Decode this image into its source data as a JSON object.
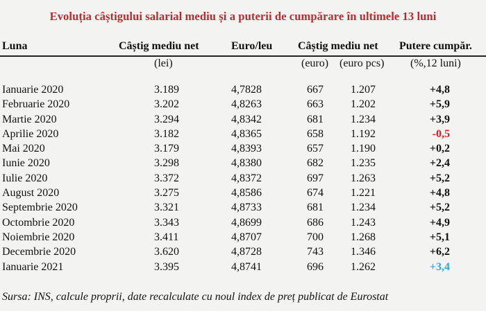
{
  "title": "Evoluția câștigului salarial mediu și a puterii de cumpărare în ultimele 13 luni",
  "headers": {
    "luna": "Luna",
    "castig_net": "Câștig mediu net",
    "castig_net_unit": "(lei)",
    "euro_leu": "Euro/leu",
    "castig_euro": "Câștig mediu net",
    "castig_euro_unit": "(euro)",
    "castig_euro_pcs_unit": "(euro pcs)",
    "putere": "Putere cumpăr.",
    "putere_unit": "(%,12 luni)"
  },
  "rows": [
    {
      "luna": "Ianuarie 2020",
      "castig": "3.189",
      "euro_leu": "4,7828",
      "euro": "667",
      "euro_pcs": "1.207",
      "putere": "+4,8",
      "color": "#111111"
    },
    {
      "luna": "Februarie 2020",
      "castig": "3.202",
      "euro_leu": "4,8263",
      "euro": "663",
      "euro_pcs": "1.202",
      "putere": "+5,9",
      "color": "#111111"
    },
    {
      "luna": "Martie 2020",
      "castig": "3.294",
      "euro_leu": "4,8342",
      "euro": "681",
      "euro_pcs": "1.234",
      "putere": "+3,9",
      "color": "#111111"
    },
    {
      "luna": "Aprilie 2020",
      "castig": "3.182",
      "euro_leu": "4,8365",
      "euro": "658",
      "euro_pcs": "1.192",
      "putere": "-0,5",
      "color": "#e02020"
    },
    {
      "luna": "Mai 2020",
      "castig": "3.179",
      "euro_leu": "4,8393",
      "euro": "657",
      "euro_pcs": "1.190",
      "putere": "+0,2",
      "color": "#111111"
    },
    {
      "luna": "Iunie 2020",
      "castig": "3.298",
      "euro_leu": "4,8380",
      "euro": "682",
      "euro_pcs": "1.235",
      "putere": "+2,4",
      "color": "#111111"
    },
    {
      "luna": "Iulie 2020",
      "castig": "3.372",
      "euro_leu": "4,8372",
      "euro": "697",
      "euro_pcs": "1.263",
      "putere": "+5,2",
      "color": "#111111"
    },
    {
      "luna": "August 2020",
      "castig": "3.275",
      "euro_leu": "4,8586",
      "euro": "674",
      "euro_pcs": "1.221",
      "putere": "+4,8",
      "color": "#111111"
    },
    {
      "luna": "Septembrie 2020",
      "castig": "3.321",
      "euro_leu": "4,8733",
      "euro": "681",
      "euro_pcs": "1.234",
      "putere": "+5,2",
      "color": "#111111"
    },
    {
      "luna": "Octombrie 2020",
      "castig": "3.343",
      "euro_leu": "4,8699",
      "euro": "686",
      "euro_pcs": "1.243",
      "putere": "+4,9",
      "color": "#111111"
    },
    {
      "luna": "Noiembrie 2020",
      "castig": "3.411",
      "euro_leu": "4,8707",
      "euro": "700",
      "euro_pcs": "1.268",
      "putere": "+5,1",
      "color": "#111111"
    },
    {
      "luna": "Decembrie 2020",
      "castig": "3.620",
      "euro_leu": "4,8728",
      "euro": "743",
      "euro_pcs": "1.346",
      "putere": "+6,2",
      "color": "#111111"
    },
    {
      "luna": "Ianuarie 2021",
      "castig": "3.395",
      "euro_leu": "4,8741",
      "euro": "696",
      "euro_pcs": "1.262",
      "putere": "+3,4",
      "color": "#29a8e0"
    }
  ],
  "source": "Sursa: INS, calcule proprii, date recalculate cu noul index de preț publicat de Eurostat"
}
